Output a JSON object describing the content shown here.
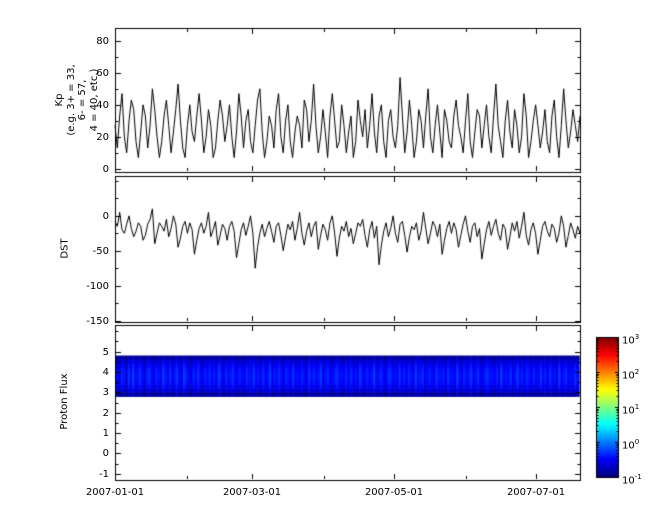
{
  "chart_data": [
    {
      "type": "line",
      "name": "kp-index",
      "title": "",
      "ylabel": "Kp\n(e.g. 3+ = 33,\n6- = 57,\n4 = 40, etc.)",
      "ylim": [
        -2,
        88
      ],
      "yticks": [
        80,
        60,
        40,
        20,
        0
      ],
      "yminor_step": 10,
      "line_color": "#000000",
      "values": [
        27,
        13,
        33,
        47,
        20,
        10,
        30,
        43,
        37,
        17,
        7,
        23,
        40,
        33,
        13,
        27,
        50,
        37,
        20,
        7,
        17,
        33,
        43,
        27,
        10,
        23,
        37,
        53,
        30,
        13,
        7,
        27,
        40,
        23,
        17,
        33,
        47,
        30,
        10,
        20,
        37,
        27,
        7,
        13,
        30,
        43,
        33,
        17,
        27,
        40,
        20,
        7,
        23,
        47,
        33,
        13,
        30,
        37,
        17,
        10,
        27,
        43,
        50,
        23,
        7,
        17,
        33,
        27,
        13,
        37,
        47,
        20,
        10,
        30,
        40,
        17,
        7,
        23,
        33,
        27,
        13,
        43,
        37,
        17,
        30,
        53,
        27,
        10,
        20,
        37,
        23,
        7,
        33,
        47,
        30,
        13,
        17,
        40,
        27,
        10,
        23,
        33,
        7,
        17,
        43,
        30,
        20,
        37,
        13,
        27,
        47,
        23,
        10,
        33,
        40,
        17,
        7,
        30,
        37,
        20,
        13,
        27,
        57,
        33,
        10,
        23,
        43,
        27,
        7,
        17,
        37,
        30,
        13,
        33,
        50,
        20,
        10,
        27,
        40,
        23,
        7,
        37,
        30,
        17,
        13,
        33,
        43,
        27,
        20,
        10,
        30,
        47,
        17,
        7,
        23,
        37,
        33,
        13,
        27,
        40,
        20,
        10,
        33,
        53,
        27,
        17,
        7,
        30,
        43,
        23,
        13,
        37,
        27,
        10,
        20,
        47,
        33,
        7,
        17,
        30,
        40,
        27,
        13,
        23,
        37,
        17,
        10,
        33,
        43,
        20,
        7,
        27,
        50,
        30,
        13,
        23,
        37,
        27,
        17,
        33
      ]
    },
    {
      "type": "line",
      "name": "dst-index",
      "title": "",
      "ylabel": "DST",
      "ylim": [
        -152,
        57
      ],
      "yticks": [
        0,
        -50,
        -100,
        -150
      ],
      "yminor_step": 25,
      "line_color": "#000000",
      "values": [
        -8,
        -15,
        5,
        -20,
        -25,
        -12,
        0,
        -18,
        -30,
        -22,
        -10,
        -15,
        -35,
        -28,
        -12,
        -5,
        10,
        -40,
        -25,
        -10,
        -15,
        -22,
        -5,
        -30,
        -18,
        0,
        -12,
        -45,
        -32,
        -15,
        -8,
        -25,
        -10,
        -20,
        -55,
        -35,
        -18,
        -10,
        -25,
        -15,
        5,
        -30,
        -20,
        -8,
        -42,
        -28,
        -12,
        -18,
        -35,
        -15,
        -8,
        -22,
        -60,
        -40,
        -20,
        -10,
        -28,
        -15,
        0,
        -25,
        -75,
        -45,
        -25,
        -12,
        -30,
        -18,
        -8,
        -22,
        -38,
        -15,
        -10,
        -28,
        -50,
        -30,
        -12,
        -20,
        -8,
        -35,
        -18,
        5,
        -25,
        -42,
        -22,
        -10,
        -30,
        -15,
        -8,
        -48,
        -28,
        -12,
        -20,
        -35,
        -10,
        0,
        -25,
        -58,
        -32,
        -15,
        -22,
        -8,
        -30,
        -18,
        -40,
        -25,
        -10,
        -15,
        -5,
        -28,
        -45,
        -20,
        -8,
        -32,
        -15,
        -70,
        -42,
        -22,
        -10,
        -30,
        -18,
        0,
        -25,
        -38,
        -12,
        -8,
        -28,
        -52,
        -30,
        -15,
        -20,
        -10,
        -35,
        -22,
        5,
        -18,
        -40,
        -25,
        -8,
        -15,
        -30,
        -12,
        -55,
        -35,
        -18,
        -8,
        -25,
        -10,
        -20,
        -45,
        -28,
        -12,
        0,
        -22,
        -38,
        -15,
        -10,
        -30,
        -18,
        -62,
        -40,
        -20,
        -8,
        -28,
        -15,
        -5,
        -25,
        -35,
        -12,
        -18,
        -48,
        -30,
        -10,
        -22,
        -8,
        -32,
        -15,
        5,
        -28,
        -42,
        -20,
        -10,
        -25,
        -55,
        -35,
        -15,
        -8,
        -22,
        -30,
        -12,
        -18,
        -38,
        -25,
        0,
        -15,
        -45,
        -28,
        -10,
        -20,
        -32,
        -15,
        -25
      ]
    },
    {
      "type": "heatmap",
      "name": "proton-flux",
      "title": "",
      "ylabel": "Proton Flux",
      "ylim": [
        -1.3,
        6.3
      ],
      "yticks": [
        5,
        4,
        3,
        2,
        1,
        0,
        -1
      ],
      "yminor_step": 0.5,
      "band_ymin": 2.8,
      "band_ymax": 4.8,
      "colormap": "jet",
      "scale": "log",
      "clim": [
        0.1,
        1000
      ],
      "values": [
        0.3,
        0.25,
        0.4,
        0.35,
        0.2,
        0.45,
        0.3,
        0.5,
        0.28,
        0.35,
        0.42,
        0.3,
        0.22,
        0.38,
        0.45,
        0.3,
        0.26,
        0.4,
        0.33,
        0.28,
        0.5,
        0.35,
        0.3,
        0.42,
        0.25,
        0.38,
        0.45,
        0.3,
        0.28,
        0.5,
        0.36,
        0.3,
        0.24,
        0.4,
        0.32,
        0.45,
        0.3,
        0.26,
        0.38,
        0.3,
        0.42,
        0.3,
        0.35,
        0.28,
        0.5,
        0.33,
        0.26,
        0.4,
        0.3,
        0.36,
        0.45,
        0.28,
        0.32,
        0.38,
        0.3,
        0.25,
        0.42,
        0.35,
        0.3,
        0.48,
        0.3,
        0.36,
        0.28,
        0.42,
        0.3,
        0.33,
        0.5,
        0.27,
        0.38,
        0.3,
        0.44,
        0.32,
        0.26,
        0.4,
        0.35,
        0.3,
        0.46,
        0.28,
        0.34,
        0.3,
        0.38,
        0.3,
        0.26,
        0.44,
        0.32,
        0.4,
        0.3,
        0.35,
        0.5,
        0.28,
        0.33,
        0.42,
        0.3,
        0.26,
        0.38,
        0.45,
        0.3,
        0.34,
        0.28,
        0.4,
        0.28,
        0.42,
        0.3,
        0.36,
        0.26,
        0.48,
        0.32,
        0.28,
        0.4,
        0.3,
        0.35,
        0.5,
        0.27,
        0.33,
        0.42,
        0.3,
        0.26,
        0.38,
        0.44,
        0.3,
        0.34,
        0.28,
        0.46,
        0.3,
        0.38,
        0.25,
        0.42,
        0.33,
        0.28,
        0.5,
        0.3,
        0.36,
        0.44,
        0.26,
        0.32,
        0.4,
        0.3,
        0.28,
        0.46,
        0.34,
        0.3,
        0.38,
        0.26,
        0.44,
        0.3,
        0.35,
        0.28,
        0.5,
        0.32,
        0.26,
        0.4,
        0.3,
        0.36,
        0.46,
        0.28,
        0.33,
        0.42,
        0.3,
        0.25,
        0.38,
        0.45,
        0.3,
        0.34,
        0.28,
        0.4,
        0.26,
        0.48,
        0.3,
        0.36,
        0.3,
        0.44,
        0.28,
        0.33,
        0.5,
        0.26,
        0.38,
        0.3,
        0.42,
        0.34,
        0.28,
        0.4,
        0.3,
        0.26,
        0.46,
        0.32,
        0.38,
        0.28,
        0.44,
        0.3,
        0.35,
        0.25,
        0.48,
        0.3,
        0.36,
        0.42,
        0.28,
        0.33,
        0.3,
        0.45,
        0.3
      ]
    }
  ],
  "xaxis": {
    "start_date": "2007-01-01",
    "tick_labels": [
      "2007-01-01",
      "2007-03-01",
      "2007-05-01",
      "2007-07-01"
    ],
    "tick_days": [
      0,
      59,
      120,
      181
    ],
    "minor_tick_days": [
      31,
      90,
      151
    ],
    "span_days": 200
  },
  "colorbar": {
    "tick_labels": [
      "10^3",
      "10^2",
      "10^1",
      "10^0",
      "10^-1"
    ],
    "tick_values": [
      1000,
      100,
      10,
      1,
      0.1
    ],
    "scale": "log"
  }
}
